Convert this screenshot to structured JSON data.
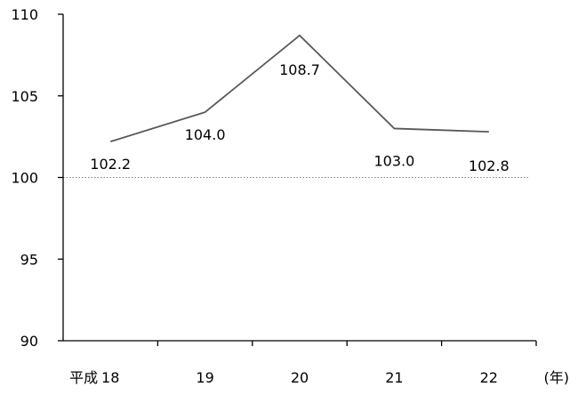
{
  "chart_data": {
    "type": "line",
    "categories": [
      "18",
      "19",
      "20",
      "21",
      "22"
    ],
    "category_prefix": "平成",
    "x_unit": "(年)",
    "series": [
      {
        "values": [
          102.2,
          104.0,
          108.7,
          103.0,
          102.8
        ]
      }
    ],
    "data_labels": [
      "102.2",
      "104.0",
      "108.7",
      "103.0",
      "102.8"
    ],
    "ylim": [
      90,
      110
    ],
    "yticks": [
      90,
      95,
      100,
      105,
      110
    ],
    "reference_line": {
      "value": 100,
      "style": "dotted"
    },
    "title": "",
    "xlabel": "",
    "ylabel": "",
    "grid": false,
    "colors": {
      "line": "#595959",
      "axis": "#000000",
      "reference": "#808080"
    }
  }
}
